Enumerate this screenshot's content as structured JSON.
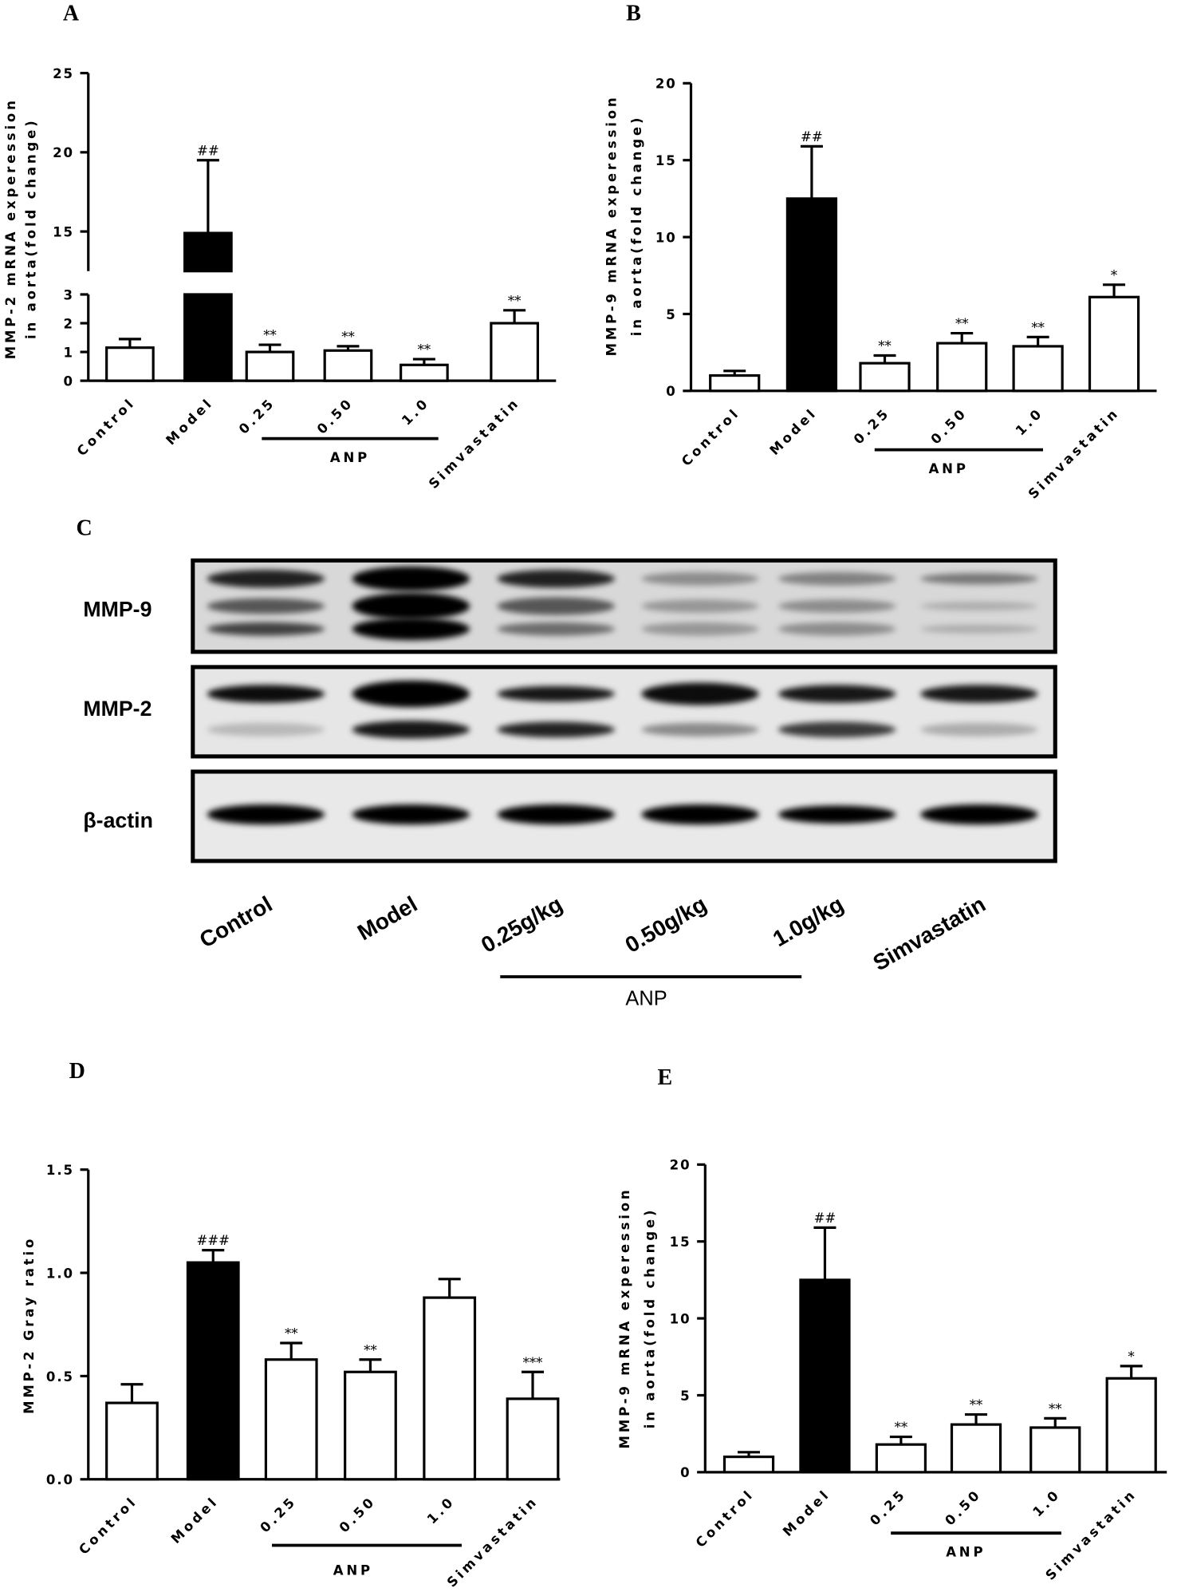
{
  "chart_data": [
    {
      "type": "bar",
      "panel": "A",
      "ylabel": [
        "MMP-2 mRNA experession",
        "in  aorta(fold change)"
      ],
      "categories": [
        "Control",
        "Model",
        "0.25",
        "0.50",
        "1.0",
        "Simvastatin"
      ],
      "values": [
        1.15,
        14.9,
        1.0,
        1.05,
        0.55,
        2.0
      ],
      "errors": [
        0.3,
        4.6,
        0.25,
        0.15,
        0.2,
        0.45
      ],
      "annotations": [
        null,
        "##",
        "**",
        "**",
        "**",
        "**"
      ],
      "colors": [
        "#ffffff",
        "#000000",
        "#ffffff",
        "#ffffff",
        "#ffffff",
        "#ffffff"
      ],
      "group_label": "ANP",
      "ylim": [
        0,
        25
      ],
      "axis_break": [
        3,
        12.5
      ],
      "yticks": [
        0,
        1,
        2,
        3,
        15,
        20,
        25
      ]
    },
    {
      "type": "bar",
      "panel": "B",
      "ylabel": [
        "MMP-9 mRNA experession",
        "in  aorta(fold change)"
      ],
      "categories": [
        "Control",
        "Model",
        "0.25",
        "0.50",
        "1.0",
        "Simvastatin"
      ],
      "values": [
        1.0,
        12.5,
        1.8,
        3.1,
        2.9,
        6.1
      ],
      "errors": [
        0.3,
        3.4,
        0.5,
        0.65,
        0.6,
        0.8
      ],
      "annotations": [
        null,
        "##",
        "**",
        "**",
        "**",
        "*"
      ],
      "colors": [
        "#ffffff",
        "#000000",
        "#ffffff",
        "#ffffff",
        "#ffffff",
        "#ffffff"
      ],
      "group_label": "ANP",
      "ylim": [
        0,
        20
      ],
      "yticks": [
        0,
        5,
        10,
        15,
        20
      ]
    },
    {
      "type": "bar",
      "panel": "D",
      "ylabel": [
        "MMP-2 Gray ratio"
      ],
      "categories": [
        "Control",
        "Model",
        "0.25",
        "0.50",
        "1.0",
        "Simvastatin"
      ],
      "values": [
        0.37,
        1.05,
        0.58,
        0.52,
        0.88,
        0.39
      ],
      "errors": [
        0.09,
        0.06,
        0.08,
        0.06,
        0.09,
        0.13
      ],
      "annotations": [
        null,
        "###",
        "**",
        "**",
        null,
        "***"
      ],
      "colors": [
        "#ffffff",
        "#000000",
        "#ffffff",
        "#ffffff",
        "#ffffff",
        "#ffffff"
      ],
      "group_label": "ANP",
      "ylim": [
        0,
        1.5
      ],
      "yticks": [
        {
          "value": 0,
          "label": "0.0"
        },
        0.5,
        {
          "value": 1,
          "label": "1.0"
        },
        1.5
      ]
    },
    {
      "type": "bar",
      "panel": "E",
      "ylabel": [
        "MMP-9 mRNA experession",
        "in  aorta(fold change)"
      ],
      "categories": [
        "Control",
        "Model",
        "0.25",
        "0.50",
        "1.0",
        "Simvastatin"
      ],
      "values": [
        1.0,
        12.5,
        1.8,
        3.1,
        2.9,
        6.1
      ],
      "errors": [
        0.3,
        3.4,
        0.5,
        0.65,
        0.6,
        0.8
      ],
      "annotations": [
        null,
        "##",
        "**",
        "**",
        "**",
        "*"
      ],
      "colors": [
        "#ffffff",
        "#000000",
        "#ffffff",
        "#ffffff",
        "#ffffff",
        "#ffffff"
      ],
      "group_label": "ANP",
      "ylim": [
        0,
        20
      ],
      "yticks": [
        0,
        5,
        10,
        15,
        20
      ]
    }
  ],
  "blot": {
    "panel": "C",
    "rows": [
      "MMP-9",
      "MMP-2",
      "β-actin"
    ],
    "columns": [
      "Control",
      "Model",
      "0.25g/kg",
      "0.50g/kg",
      "1.0g/kg",
      "Simvastatin"
    ],
    "group_label": "ANP"
  }
}
